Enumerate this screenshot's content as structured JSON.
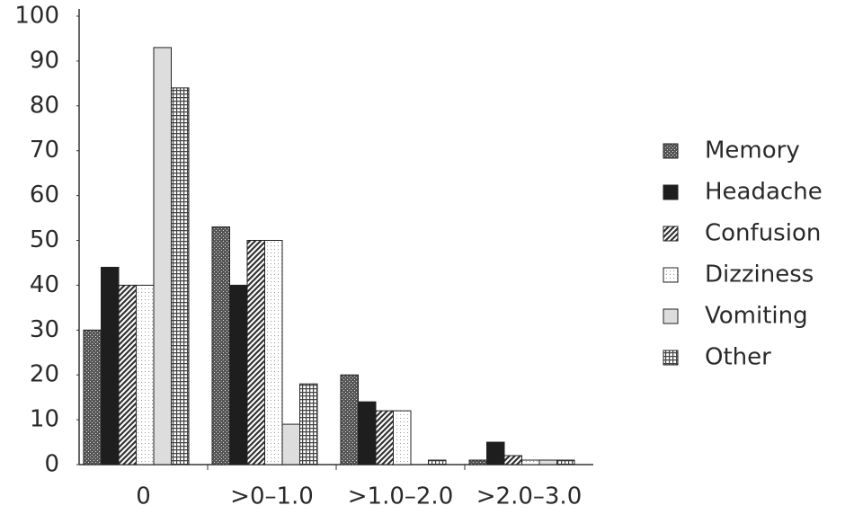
{
  "chart_data": {
    "type": "bar",
    "categories": [
      "0",
      ">0–1.0",
      ">1.0–2.0",
      ">2.0–3.0"
    ],
    "series": [
      {
        "name": "Memory",
        "color": "#555555",
        "values": [
          30,
          53,
          20,
          1
        ]
      },
      {
        "name": "Headache",
        "color": "#1e1e1e",
        "values": [
          44,
          40,
          14,
          5
        ]
      },
      {
        "name": "Confusion",
        "color": "#333333",
        "values": [
          40,
          50,
          12,
          2
        ]
      },
      {
        "name": "Dizziness",
        "color": "#999999",
        "values": [
          40,
          50,
          12,
          1
        ]
      },
      {
        "name": "Vomiting",
        "color": "#dddddd",
        "values": [
          93,
          9,
          0,
          1
        ]
      },
      {
        "name": "Other",
        "color": "#444444",
        "values": [
          84,
          18,
          1,
          1
        ]
      }
    ],
    "ylim": [
      0,
      100
    ],
    "yticks": [
      0,
      10,
      20,
      30,
      40,
      50,
      60,
      70,
      80,
      90,
      100
    ],
    "grid": false,
    "legend": "right"
  }
}
